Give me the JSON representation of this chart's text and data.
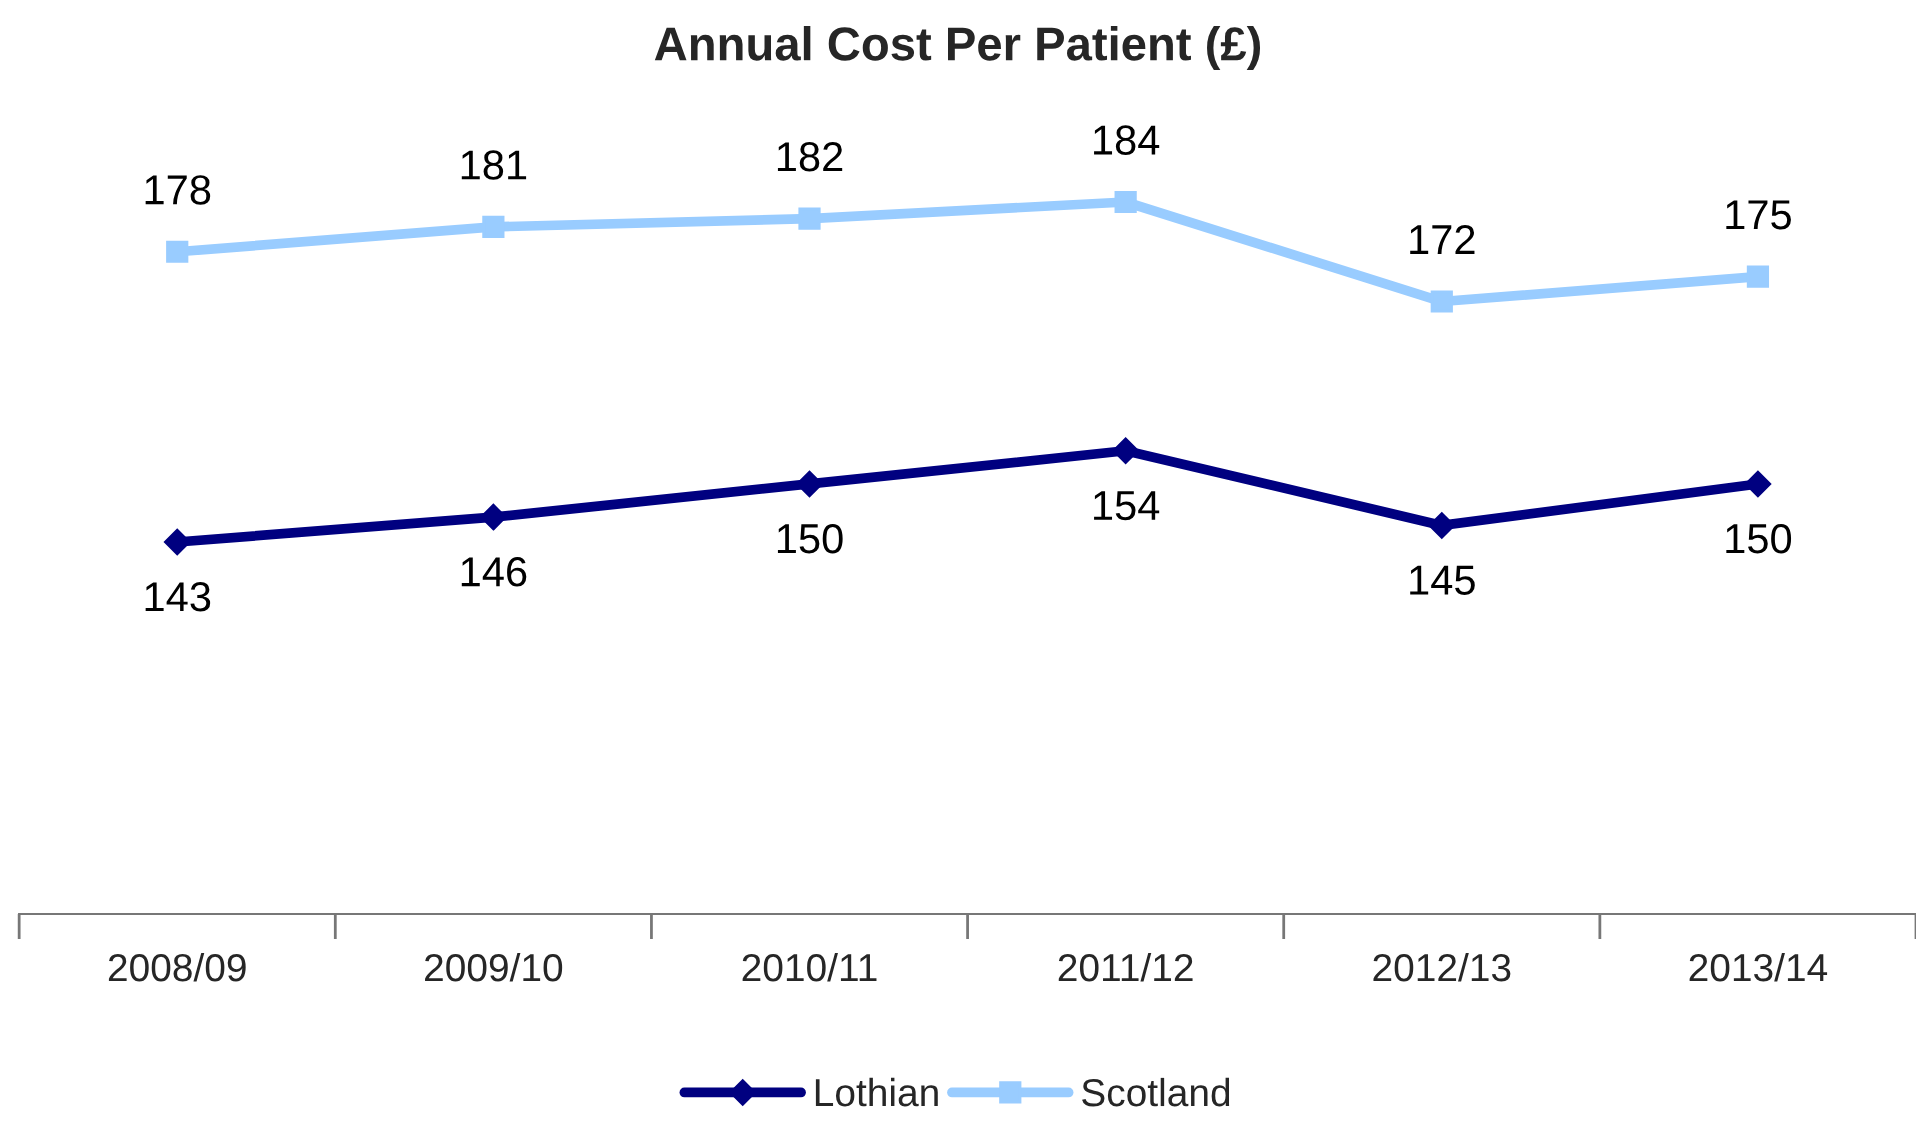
{
  "chart_data": {
    "type": "line",
    "title": "Annual Cost Per Patient (£)",
    "categories": [
      "2008/09",
      "2009/10",
      "2010/11",
      "2011/12",
      "2012/13",
      "2013/14"
    ],
    "series": [
      {
        "name": "Lothian",
        "color": "#000080",
        "marker": "diamond",
        "values": [
          143,
          146,
          150,
          154,
          145,
          150
        ]
      },
      {
        "name": "Scotland",
        "color": "#99ccff",
        "marker": "square",
        "values": [
          178,
          181,
          182,
          184,
          172,
          175
        ]
      }
    ],
    "data_labels": true,
    "legend": "bottom"
  }
}
